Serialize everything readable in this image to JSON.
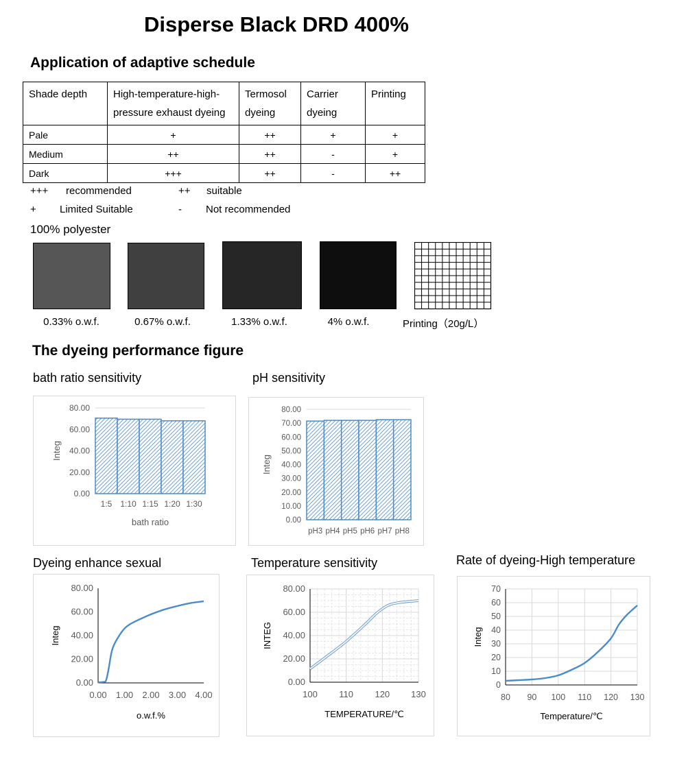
{
  "title": "Disperse Black DRD 400%",
  "schedule": {
    "heading": "Application of adaptive schedule",
    "columns": [
      "Shade depth",
      "High-temperature-high-pressure exhaust dyeing",
      "Termosol dyeing",
      "Carrier dyeing",
      "Printing"
    ],
    "rows": [
      {
        "shade": "Pale",
        "values": [
          "+",
          "++",
          "+",
          "+"
        ]
      },
      {
        "shade": "Medium",
        "values": [
          "++",
          "++",
          "-",
          "+"
        ]
      },
      {
        "shade": "Dark",
        "values": [
          "+++",
          "++",
          "-",
          "++"
        ]
      }
    ]
  },
  "legend": [
    {
      "symbol": "+++",
      "meaning": "recommended"
    },
    {
      "symbol": "++",
      "meaning": "suitable"
    },
    {
      "symbol": "+",
      "meaning": "Limited Suitable"
    },
    {
      "symbol": "-",
      "meaning": "Not recommended"
    }
  ],
  "substrate": "100% polyester",
  "swatches": [
    {
      "label": "0.33% o.w.f.",
      "color": "#565656"
    },
    {
      "label": "0.67% o.w.f.",
      "color": "#404040"
    },
    {
      "label": "1.33% o.w.f.",
      "color": "#262626"
    },
    {
      "label": "4% o.w.f.",
      "color": "#0e0e0e"
    },
    {
      "label": "Printing（20g/L）",
      "color": "grid"
    }
  ],
  "performance_heading": "The dyeing performance figure",
  "chart_data": [
    {
      "type": "bar",
      "title": "bath ratio sensitivity",
      "categories": [
        "1:5",
        "1:10",
        "1:15",
        "1:20",
        "1:30"
      ],
      "values": [
        70.5,
        69.5,
        69.5,
        68.0,
        68.0
      ],
      "xlabel": "bath ratio",
      "ylabel": "Integ",
      "ylim": [
        0,
        80
      ],
      "yticks": [
        "0.00",
        "20.00",
        "40.00",
        "60.00",
        "80.00"
      ],
      "grid": true,
      "color": "#4a8bc9"
    },
    {
      "type": "bar",
      "title": "pH sensitivity",
      "categories": [
        "pH3",
        "pH4",
        "pH5",
        "pH6",
        "pH7",
        "pH8"
      ],
      "values": [
        71.5,
        72.0,
        72.0,
        72.0,
        72.5,
        72.5
      ],
      "xlabel": "",
      "ylabel": "Integ",
      "ylim": [
        0,
        80
      ],
      "yticks": [
        "0.00",
        "10.00",
        "20.00",
        "30.00",
        "40.00",
        "50.00",
        "60.00",
        "70.00",
        "80.00"
      ],
      "grid": true,
      "color": "#4a8bc9"
    },
    {
      "type": "line",
      "title": "Dyeing enhance sexual",
      "x": [
        0,
        0.2,
        0.3,
        0.4,
        0.5,
        0.6,
        0.8,
        1.0,
        1.2,
        1.5,
        2.0,
        2.5,
        3.0,
        3.5,
        4.0
      ],
      "y": [
        0.5,
        0.8,
        2,
        12,
        25,
        32,
        40,
        46,
        49.5,
        53,
        58,
        62,
        65,
        67.5,
        69
      ],
      "xlabel": "o.w.f.%",
      "ylabel": "Integ",
      "xlim": [
        0,
        4
      ],
      "ylim": [
        0,
        80
      ],
      "xticks": [
        "0.00",
        "1.00",
        "2.00",
        "3.00",
        "4.00"
      ],
      "yticks": [
        "0.00",
        "20.00",
        "40.00",
        "60.00",
        "80.00"
      ],
      "grid": false,
      "color": "#4a8bc9"
    },
    {
      "type": "line",
      "title": "Temperature sensitivity",
      "x": [
        100,
        105,
        110,
        115,
        118,
        120,
        122,
        125,
        130
      ],
      "y": [
        11.5,
        23,
        35,
        49,
        58,
        63,
        66.5,
        68.5,
        70
      ],
      "xlabel": "TEMPERATURE/℃",
      "ylabel": "INTEG",
      "xlim": [
        100,
        130
      ],
      "ylim": [
        0,
        80
      ],
      "xticks": [
        "100",
        "110",
        "120",
        "130"
      ],
      "yticks": [
        "0.00",
        "20.00",
        "40.00",
        "60.00",
        "80.00"
      ],
      "grid": true,
      "color": "#7fa9d6"
    },
    {
      "type": "line",
      "title": "Rate of dyeing-High temperature",
      "x": [
        80,
        85,
        90,
        95,
        100,
        105,
        110,
        115,
        120,
        123,
        126,
        130
      ],
      "y": [
        3,
        3.5,
        4,
        5,
        7,
        11,
        16,
        24,
        34,
        44,
        51,
        58
      ],
      "xlabel": "Temperature/℃",
      "ylabel": "Integ",
      "xlim": [
        80,
        130
      ],
      "ylim": [
        0,
        70
      ],
      "xticks": [
        "80",
        "90",
        "100",
        "110",
        "120",
        "130"
      ],
      "yticks": [
        "0",
        "10",
        "20",
        "30",
        "40",
        "50",
        "60",
        "70"
      ],
      "grid": true,
      "color": "#4a8bc9"
    }
  ]
}
